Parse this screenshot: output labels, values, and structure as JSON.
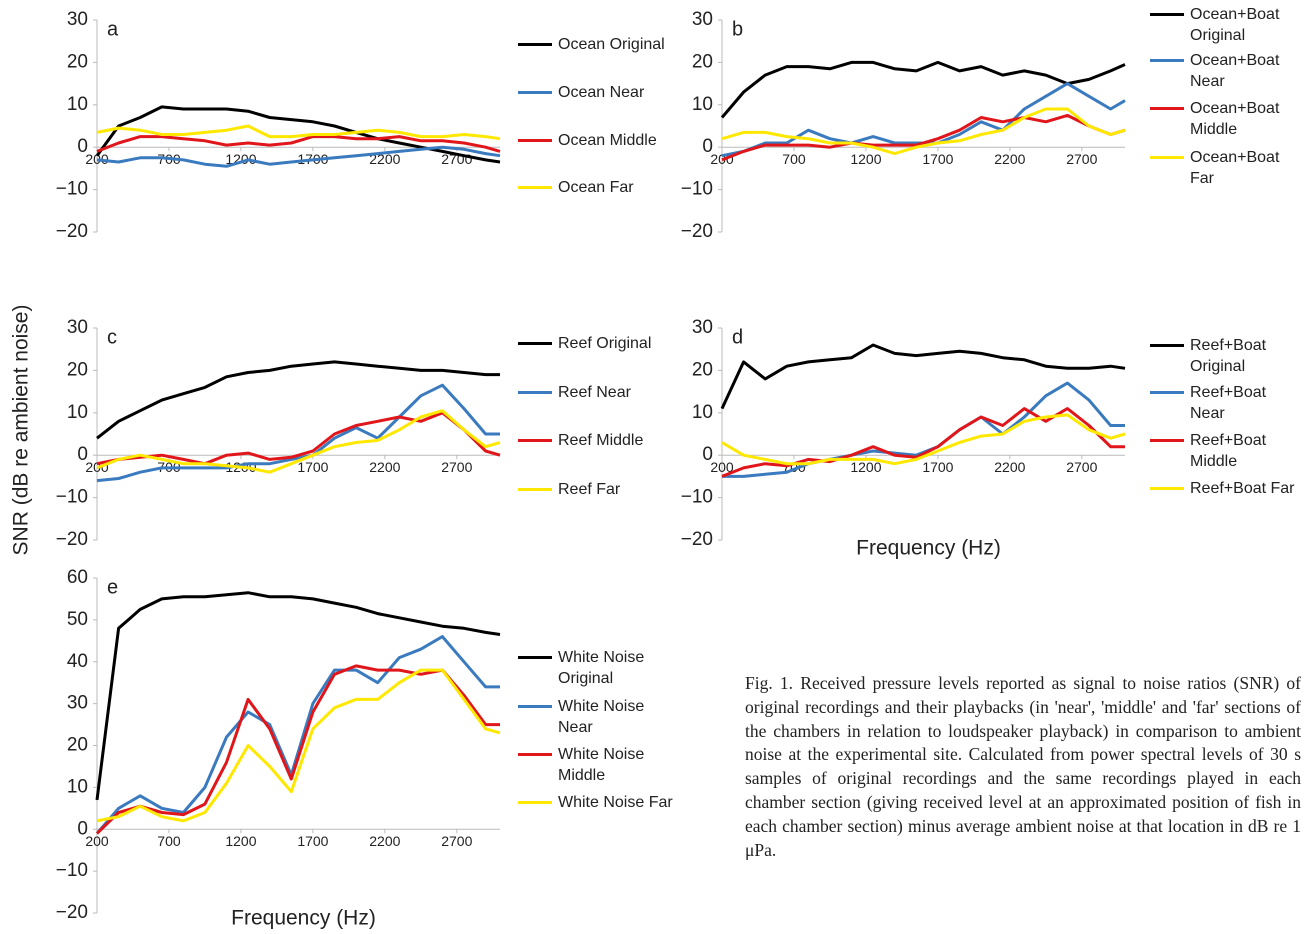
{
  "y_label": "SNR (dB re ambient noise)",
  "caption": "Fig. 1. Received pressure levels reported as signal to noise ratios (SNR) of original recordings and their playbacks (in 'near', 'middle' and 'far' sections of the chambers in relation to loudspeaker playback) in comparison to ambient noise at the experimental site. Calculated from power spectral levels of 30 s samples of original recordings and the same recordings played in each chamber section (giving received level at an approximated position of fish in each chamber section) minus average ambient noise at that location in dB re 1 μPa.",
  "chart_data": [
    {
      "type": "line",
      "panel_label": "a",
      "x": [
        200,
        350,
        500,
        650,
        800,
        950,
        1100,
        1250,
        1400,
        1550,
        1700,
        1850,
        2000,
        2150,
        2300,
        2450,
        2600,
        2750,
        2900,
        3000
      ],
      "xlim": [
        200,
        3000
      ],
      "xticks": [
        200,
        700,
        1200,
        1700,
        2200,
        2700
      ],
      "ylim": [
        -20,
        30
      ],
      "yticks": [
        {
          "value": -20,
          "label": "−20"
        },
        {
          "value": -10,
          "label": "−10"
        },
        0,
        10,
        20,
        30
      ],
      "series": [
        {
          "name": "Ocean Original",
          "color": "#000000",
          "values": [
            -2,
            5,
            7,
            9.5,
            9,
            9,
            9,
            8.5,
            7,
            6.5,
            6,
            5,
            3.5,
            2,
            1,
            0,
            -1,
            -2,
            -3,
            -3.5
          ]
        },
        {
          "name": "Ocean Near",
          "color": "#3a7abf",
          "values": [
            -3,
            -3.5,
            -2.5,
            -2.5,
            -3,
            -4,
            -4.5,
            -3,
            -4,
            -3.5,
            -3,
            -2.5,
            -2,
            -1.5,
            -1,
            -0.5,
            0,
            -0.5,
            -1.5,
            -2
          ]
        },
        {
          "name": "Ocean Middle",
          "color": "#e0161b",
          "values": [
            -1,
            1,
            2.5,
            2.5,
            2,
            1.5,
            0.5,
            1,
            0.5,
            1,
            2.5,
            2.5,
            2,
            2,
            2.5,
            1.5,
            1.5,
            1,
            0,
            -1
          ]
        },
        {
          "name": "Ocean Far",
          "color": "#ffe800",
          "values": [
            3.5,
            4.5,
            4,
            3,
            3,
            3.5,
            4,
            5,
            2.5,
            2.5,
            3,
            3,
            3.5,
            4,
            3.5,
            2.5,
            2.5,
            3,
            2.5,
            2
          ]
        }
      ]
    },
    {
      "type": "line",
      "panel_label": "b",
      "x": [
        200,
        350,
        500,
        650,
        800,
        950,
        1100,
        1250,
        1400,
        1550,
        1700,
        1850,
        2000,
        2150,
        2300,
        2450,
        2600,
        2750,
        2900,
        3000
      ],
      "xlim": [
        200,
        3000
      ],
      "xticks": [
        200,
        700,
        1200,
        1700,
        2200,
        2700
      ],
      "ylim": [
        -20,
        30
      ],
      "yticks": [
        {
          "value": -20,
          "label": "−20"
        },
        {
          "value": -10,
          "label": "−10"
        },
        0,
        10,
        20,
        30
      ],
      "series": [
        {
          "name": "Ocean+Boat Original",
          "color": "#000000",
          "values": [
            7,
            13,
            17,
            19,
            19,
            18.5,
            20,
            20,
            18.5,
            18,
            20,
            18,
            19,
            17,
            18,
            17,
            15,
            16,
            18,
            19.5
          ]
        },
        {
          "name": "Ocean+Boat Near",
          "color": "#3a7abf",
          "values": [
            -2,
            -1,
            1,
            1,
            4,
            2,
            1,
            2.5,
            1,
            1,
            1,
            3,
            6,
            4,
            9,
            12,
            15,
            12,
            9,
            11
          ]
        },
        {
          "name": "Ocean+Boat Middle",
          "color": "#e0161b",
          "values": [
            -3,
            -1,
            0.5,
            0.5,
            0.5,
            0,
            1,
            0.5,
            0.5,
            0.5,
            2,
            4,
            7,
            6,
            7,
            6,
            7.5,
            5,
            3,
            4
          ]
        },
        {
          "name": "Ocean+Boat Far",
          "color": "#ffe800",
          "values": [
            2,
            3.5,
            3.5,
            2.5,
            2,
            1,
            1,
            0,
            -1.5,
            0,
            1,
            1.5,
            3,
            4,
            7,
            9,
            9,
            5,
            3,
            4
          ]
        }
      ]
    },
    {
      "type": "line",
      "panel_label": "c",
      "x": [
        200,
        350,
        500,
        650,
        800,
        950,
        1100,
        1250,
        1400,
        1550,
        1700,
        1850,
        2000,
        2150,
        2300,
        2450,
        2600,
        2750,
        2900,
        3000
      ],
      "xlim": [
        200,
        3000
      ],
      "xticks": [
        200,
        700,
        1200,
        1700,
        2200,
        2700
      ],
      "ylim": [
        -20,
        30
      ],
      "yticks": [
        {
          "value": -20,
          "label": "−20"
        },
        {
          "value": -10,
          "label": "−10"
        },
        0,
        10,
        20,
        30
      ],
      "series": [
        {
          "name": "Reef Original",
          "color": "#000000",
          "values": [
            4,
            8,
            10.5,
            13,
            14.5,
            16,
            18.5,
            19.5,
            20,
            21,
            21.5,
            22,
            21.5,
            21,
            20.5,
            20,
            20,
            19.5,
            19,
            19
          ]
        },
        {
          "name": "Reef Near",
          "color": "#3a7abf",
          "values": [
            -6,
            -5.5,
            -4,
            -3,
            -3,
            -3,
            -3,
            -2,
            -2,
            -1,
            0,
            4,
            6.5,
            4,
            9,
            14,
            16.5,
            11,
            5,
            5
          ]
        },
        {
          "name": "Reef Middle",
          "color": "#e0161b",
          "values": [
            -2,
            -1,
            -0.5,
            0,
            -1,
            -2,
            0,
            0.5,
            -1,
            -0.5,
            1,
            5,
            7,
            8,
            9,
            8,
            10,
            6,
            1,
            0
          ]
        },
        {
          "name": "Reef Far",
          "color": "#ffe800",
          "values": [
            -3,
            -1,
            0,
            -1,
            -2,
            -2,
            -2.5,
            -3,
            -4,
            -2,
            0,
            2,
            3,
            3.5,
            6,
            9,
            10.5,
            6,
            2,
            3
          ]
        }
      ]
    },
    {
      "type": "line",
      "panel_label": "d",
      "x_label": "Frequency (Hz)",
      "x": [
        200,
        350,
        500,
        650,
        800,
        950,
        1100,
        1250,
        1400,
        1550,
        1700,
        1850,
        2000,
        2150,
        2300,
        2450,
        2600,
        2750,
        2900,
        3000
      ],
      "xlim": [
        200,
        3000
      ],
      "xticks": [
        200,
        700,
        1200,
        1700,
        2200,
        2700
      ],
      "ylim": [
        -20,
        30
      ],
      "yticks": [
        {
          "value": -20,
          "label": "−20"
        },
        {
          "value": -10,
          "label": "−10"
        },
        0,
        10,
        20,
        30
      ],
      "series": [
        {
          "name": "Reef+Boat Original",
          "color": "#000000",
          "values": [
            11,
            22,
            18,
            21,
            22,
            22.5,
            23,
            26,
            24,
            23.5,
            24,
            24.5,
            24,
            23,
            22.5,
            21,
            20.5,
            20.5,
            21,
            20.5
          ]
        },
        {
          "name": "Reef+Boat Near",
          "color": "#3a7abf",
          "values": [
            -5,
            -5,
            -4.5,
            -4,
            -2,
            -1,
            0,
            1,
            0.5,
            0,
            2,
            6,
            9,
            5,
            9,
            14,
            17,
            13,
            7,
            7
          ]
        },
        {
          "name": "Reef+Boat Middle",
          "color": "#e0161b",
          "values": [
            -5,
            -3,
            -2,
            -2.5,
            -1,
            -1.5,
            0,
            2,
            0,
            -0.5,
            2,
            6,
            9,
            7,
            11,
            8,
            11,
            7,
            2,
            2
          ]
        },
        {
          "name": "Reef+Boat Far",
          "color": "#ffe800",
          "values": [
            3,
            0,
            -1,
            -2,
            -2,
            -1,
            -1,
            -1,
            -2,
            -1,
            1,
            3,
            4.5,
            5,
            8,
            9,
            9.5,
            6,
            4,
            5
          ]
        }
      ]
    },
    {
      "type": "line",
      "panel_label": "e",
      "x_label": "Frequency (Hz)",
      "x": [
        200,
        350,
        500,
        650,
        800,
        950,
        1100,
        1250,
        1400,
        1550,
        1700,
        1850,
        2000,
        2150,
        2300,
        2450,
        2600,
        2750,
        2900,
        3000
      ],
      "xlim": [
        200,
        3000
      ],
      "xticks": [
        200,
        700,
        1200,
        1700,
        2200,
        2700
      ],
      "ylim": [
        -20,
        60
      ],
      "yticks": [
        {
          "value": -20,
          "label": "−20"
        },
        {
          "value": -10,
          "label": "−10"
        },
        0,
        10,
        20,
        30,
        40,
        50,
        60
      ],
      "series": [
        {
          "name": "White Noise Original",
          "color": "#000000",
          "values": [
            7,
            48,
            52.5,
            55,
            55.5,
            55.5,
            56,
            56.5,
            55.5,
            55.5,
            55,
            54,
            53,
            51.5,
            50.5,
            49.5,
            48.5,
            48,
            47,
            46.5
          ]
        },
        {
          "name": "White Noise Near",
          "color": "#3a7abf",
          "values": [
            -1,
            5,
            8,
            5,
            4,
            10,
            22,
            28,
            25,
            13,
            30,
            38,
            38,
            35,
            41,
            43,
            46,
            40,
            34,
            34
          ]
        },
        {
          "name": "White Noise Middle",
          "color": "#e0161b",
          "values": [
            -1,
            4,
            5.5,
            4,
            3.5,
            6,
            16,
            31,
            24,
            12,
            28,
            37,
            39,
            38,
            38,
            37,
            38,
            32,
            25,
            25
          ]
        },
        {
          "name": "White Noise Far",
          "color": "#ffe800",
          "values": [
            2,
            3,
            5.5,
            3,
            2,
            4,
            11,
            20,
            15,
            9,
            24,
            29,
            31,
            31,
            35,
            38,
            38,
            31,
            24,
            23
          ]
        }
      ]
    }
  ]
}
